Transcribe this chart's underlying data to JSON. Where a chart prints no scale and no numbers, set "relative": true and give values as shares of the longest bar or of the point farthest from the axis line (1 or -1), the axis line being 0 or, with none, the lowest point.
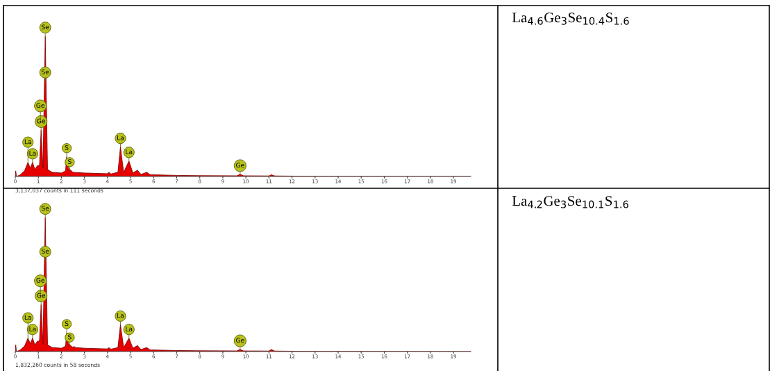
{
  "chart_data": [
    {
      "type": "area",
      "relative": true,
      "color": "#e60000",
      "xlim": [
        0,
        19.75
      ],
      "xticks": [
        0,
        1,
        2,
        3,
        4,
        5,
        6,
        7,
        8,
        9,
        10,
        11,
        12,
        13,
        14,
        15,
        16,
        17,
        18,
        19
      ],
      "x": [
        0,
        0.02,
        0.05,
        0.2,
        0.4,
        0.55,
        0.65,
        0.75,
        0.85,
        0.95,
        1.05,
        1.12,
        1.2,
        1.3,
        1.4,
        1.6,
        2.0,
        2.18,
        2.23,
        2.3,
        2.5,
        3,
        4,
        4.05,
        4.15,
        4.45,
        4.56,
        4.7,
        4.93,
        5.1,
        5.3,
        5.45,
        5.7,
        5.85,
        6,
        7,
        8,
        9.6,
        9.75,
        9.9,
        11.0,
        11.1,
        11.25,
        13,
        19.75
      ],
      "values": [
        0,
        0.04,
        0,
        0.01,
        0.04,
        0.1,
        0.06,
        0.1,
        0.05,
        0.075,
        0.08,
        0.33,
        0.06,
        1.0,
        0.05,
        0.03,
        0.025,
        0.04,
        0.14,
        0.06,
        0.03,
        0.025,
        0.02,
        0.03,
        0.018,
        0.03,
        0.21,
        0.03,
        0.11,
        0.025,
        0.045,
        0.015,
        0.03,
        0.012,
        0.012,
        0.008,
        0.006,
        0.005,
        0.015,
        0.005,
        0.004,
        0.012,
        0.004,
        0.001,
        0
      ],
      "annotations": [
        "3,137,037 counts in 111 seconds",
        {
          "text": "Se",
          "x": 1.3,
          "y": 1.0
        },
        {
          "text": "Se",
          "x": 1.3,
          "y": 0.68
        },
        {
          "text": "Ge",
          "x": 1.09,
          "y": 0.4
        },
        {
          "text": "Ge",
          "x": 1.12,
          "y": 0.33
        },
        {
          "text": "La",
          "x": 0.55,
          "y": 0.1
        },
        {
          "text": "La",
          "x": 0.75,
          "y": 0.1
        },
        {
          "text": "S",
          "x": 2.23,
          "y": 0.14
        },
        {
          "text": "S",
          "x": 2.36,
          "y": 0.04
        },
        {
          "text": "La",
          "x": 4.56,
          "y": 0.21
        },
        {
          "text": "La",
          "x": 4.93,
          "y": 0.11
        },
        {
          "text": "Ge",
          "x": 9.75,
          "y": 0.015
        }
      ]
    },
    {
      "type": "other",
      "title": "La$_{4.6}$Ge$_{3}$Se$_{10.4}$S$_{1.6}$"
    },
    {
      "type": "area",
      "relative": true,
      "color": "#e60000",
      "xlim": [
        0,
        19.75
      ],
      "xticks": [
        0,
        1,
        2,
        3,
        4,
        5,
        6,
        7,
        8,
        9,
        10,
        11,
        12,
        13,
        14,
        15,
        16,
        17,
        18,
        19
      ],
      "x": [
        0,
        0.02,
        0.05,
        0.2,
        0.4,
        0.55,
        0.65,
        0.75,
        0.85,
        0.95,
        1.05,
        1.12,
        1.2,
        1.3,
        1.4,
        1.6,
        2.0,
        2.18,
        2.23,
        2.3,
        2.5,
        2.55,
        2.6,
        3,
        4,
        4.05,
        4.15,
        4.45,
        4.56,
        4.7,
        4.93,
        5.1,
        5.3,
        5.45,
        5.7,
        5.85,
        6,
        7,
        8,
        9.6,
        9.75,
        9.9,
        11.0,
        11.1,
        11.25,
        13,
        19.75
      ],
      "values": [
        0,
        0.05,
        0,
        0.01,
        0.04,
        0.1,
        0.06,
        0.1,
        0.05,
        0.075,
        0.08,
        0.35,
        0.06,
        1.0,
        0.05,
        0.03,
        0.025,
        0.04,
        0.14,
        0.06,
        0.03,
        0.04,
        0.03,
        0.025,
        0.02,
        0.03,
        0.018,
        0.03,
        0.2,
        0.03,
        0.1,
        0.025,
        0.045,
        0.015,
        0.03,
        0.012,
        0.012,
        0.008,
        0.006,
        0.005,
        0.015,
        0.005,
        0.004,
        0.015,
        0.004,
        0.001,
        0
      ],
      "annotations": [
        "1,832,260 counts in 58 seconds",
        {
          "text": "Se",
          "x": 1.3,
          "y": 1.0
        },
        {
          "text": "Se",
          "x": 1.3,
          "y": 0.68
        },
        {
          "text": "Ge",
          "x": 1.09,
          "y": 0.42
        },
        {
          "text": "Ge",
          "x": 1.12,
          "y": 0.35
        },
        {
          "text": "La",
          "x": 0.55,
          "y": 0.1
        },
        {
          "text": "La",
          "x": 0.75,
          "y": 0.1
        },
        {
          "text": "S",
          "x": 2.23,
          "y": 0.14
        },
        {
          "text": "S",
          "x": 2.36,
          "y": 0.04
        },
        {
          "text": "La",
          "x": 4.56,
          "y": 0.2
        },
        {
          "text": "La",
          "x": 4.93,
          "y": 0.1
        },
        {
          "text": "Ge",
          "x": 9.75,
          "y": 0.015
        }
      ]
    },
    {
      "type": "other",
      "title": "La$_{4.2}$Ge$_{3}$Se$_{10.1}$S$_{1.6}$"
    }
  ]
}
